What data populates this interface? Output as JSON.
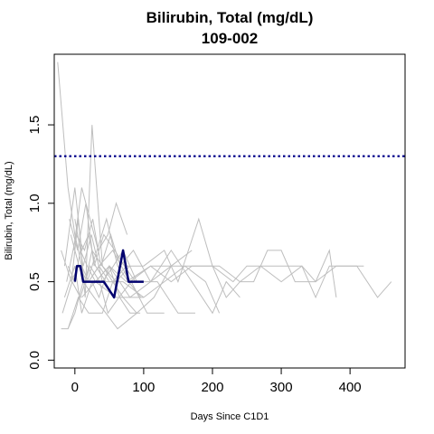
{
  "chart_data": {
    "type": "line",
    "title": "Bilirubin, Total (mg/dL)",
    "subtitle": "109-002",
    "xlabel": "Days Since C1D1",
    "ylabel": "Bilirubin, Total (mg/dL)",
    "xlim": [
      -30,
      480
    ],
    "ylim": [
      -0.05,
      1.95
    ],
    "x_ticks": [
      0,
      100,
      200,
      300,
      400
    ],
    "y_ticks": [
      0.0,
      0.5,
      1.0,
      1.5
    ],
    "x_tick_labels": [
      "0",
      "100",
      "200",
      "300",
      "400"
    ],
    "y_tick_labels": [
      "0.0",
      "0.5",
      "1.0",
      "1.5"
    ],
    "grid": false,
    "reference_line": {
      "y": 1.3,
      "style": "dotted",
      "color": "#00008B"
    },
    "colors": {
      "highlight": "#00006E",
      "background_series": "#BEBEBE",
      "frame": "#000000"
    },
    "highlight_series": {
      "x": [
        0,
        3,
        8,
        12,
        15,
        30,
        42,
        57,
        70,
        78,
        85,
        100
      ],
      "y": [
        0.5,
        0.6,
        0.6,
        0.5,
        0.5,
        0.5,
        0.5,
        0.4,
        0.7,
        0.5,
        0.5,
        0.5
      ]
    },
    "background_series": [
      {
        "x": [
          -25,
          -10,
          0,
          10,
          20,
          35,
          50,
          70,
          100
        ],
        "y": [
          1.9,
          1.1,
          0.8,
          0.6,
          0.5,
          0.6,
          0.5,
          0.5,
          0.4
        ]
      },
      {
        "x": [
          -20,
          -5,
          5,
          15,
          25,
          40,
          60
        ],
        "y": [
          0.7,
          0.5,
          0.9,
          0.4,
          1.5,
          0.6,
          0.5
        ]
      },
      {
        "x": [
          -15,
          0,
          10,
          20,
          30,
          45,
          60,
          80
        ],
        "y": [
          0.6,
          1.1,
          0.7,
          0.8,
          0.6,
          0.5,
          0.5,
          0.6
        ]
      },
      {
        "x": [
          -10,
          0,
          8,
          18,
          30,
          50,
          75,
          110,
          140,
          170,
          210,
          240,
          270,
          300,
          330,
          350,
          380,
          410,
          440,
          460
        ],
        "y": [
          0.6,
          0.5,
          0.7,
          0.6,
          0.5,
          0.6,
          0.5,
          0.6,
          0.5,
          0.6,
          0.6,
          0.5,
          0.6,
          0.5,
          0.6,
          0.5,
          0.6,
          0.6,
          0.4,
          0.5
        ]
      },
      {
        "x": [
          -5,
          5,
          15,
          25,
          40,
          55,
          75,
          100,
          130,
          150,
          180,
          200,
          220,
          240,
          260,
          280,
          300,
          320,
          350,
          370,
          380
        ],
        "y": [
          0.5,
          0.6,
          0.5,
          0.7,
          0.6,
          0.5,
          0.6,
          0.6,
          0.7,
          0.5,
          0.9,
          0.6,
          0.4,
          0.5,
          0.5,
          0.7,
          0.7,
          0.5,
          0.5,
          0.7,
          0.4
        ]
      },
      {
        "x": [
          -20,
          -10,
          0,
          12,
          28,
          45,
          62,
          90
        ],
        "y": [
          0.2,
          0.2,
          0.3,
          0.5,
          0.4,
          0.3,
          0.2,
          0.3
        ]
      },
      {
        "x": [
          -15,
          0,
          10,
          25,
          35,
          50,
          65,
          80,
          95
        ],
        "y": [
          0.4,
          0.6,
          0.3,
          0.5,
          0.4,
          0.6,
          0.4,
          0.3,
          0.3
        ]
      },
      {
        "x": [
          -12,
          2,
          14,
          26,
          38,
          52,
          66,
          85,
          110,
          140,
          170
        ],
        "y": [
          0.5,
          0.8,
          0.7,
          0.9,
          0.6,
          0.8,
          0.6,
          0.7,
          0.5,
          0.6,
          0.7
        ]
      },
      {
        "x": [
          -8,
          4,
          16,
          28,
          42,
          58,
          72,
          88
        ],
        "y": [
          0.9,
          0.7,
          1.0,
          0.6,
          0.8,
          0.7,
          0.6,
          0.5
        ]
      },
      {
        "x": [
          -18,
          -4,
          8,
          22,
          36,
          48,
          64,
          82,
          105,
          130
        ],
        "y": [
          0.3,
          0.5,
          0.4,
          0.6,
          0.5,
          0.3,
          0.4,
          0.5,
          0.3,
          0.3
        ]
      },
      {
        "x": [
          0,
          12,
          24,
          40,
          56,
          70,
          90,
          120,
          150,
          175
        ],
        "y": [
          0.9,
          0.6,
          0.8,
          0.5,
          0.6,
          0.7,
          0.5,
          0.5,
          0.3,
          0.3
        ]
      },
      {
        "x": [
          -6,
          6,
          18,
          32,
          46,
          62,
          78,
          96
        ],
        "y": [
          0.8,
          0.6,
          0.5,
          0.7,
          0.9,
          0.6,
          0.5,
          0.4
        ]
      },
      {
        "x": [
          -2,
          10,
          22,
          34,
          48,
          60,
          76
        ],
        "y": [
          0.7,
          1.1,
          0.9,
          0.7,
          0.8,
          1.0,
          0.8
        ]
      },
      {
        "x": [
          20,
          35,
          55,
          80,
          110,
          140,
          170,
          200,
          230,
          250,
          270,
          300,
          330,
          350,
          370,
          395,
          420
        ],
        "y": [
          0.5,
          0.6,
          0.7,
          0.5,
          0.6,
          0.6,
          0.6,
          0.6,
          0.5,
          0.6,
          0.6,
          0.6,
          0.6,
          0.4,
          0.6,
          0.6,
          0.6
        ]
      },
      {
        "x": [
          30,
          50,
          80,
          110,
          140,
          170,
          200,
          220,
          240
        ],
        "y": [
          0.5,
          0.6,
          0.4,
          0.5,
          0.7,
          0.5,
          0.3,
          0.5,
          0.4
        ]
      },
      {
        "x": [
          10,
          30,
          60,
          100,
          130,
          160,
          190,
          210
        ],
        "y": [
          0.4,
          0.5,
          0.4,
          0.4,
          0.5,
          0.6,
          0.5,
          0.3
        ]
      },
      {
        "x": [
          -10,
          5,
          20,
          40,
          55,
          70,
          90,
          115,
          140
        ],
        "y": [
          0.2,
          0.4,
          0.3,
          0.3,
          0.5,
          0.4,
          0.3,
          0.4,
          0.6
        ]
      }
    ]
  }
}
